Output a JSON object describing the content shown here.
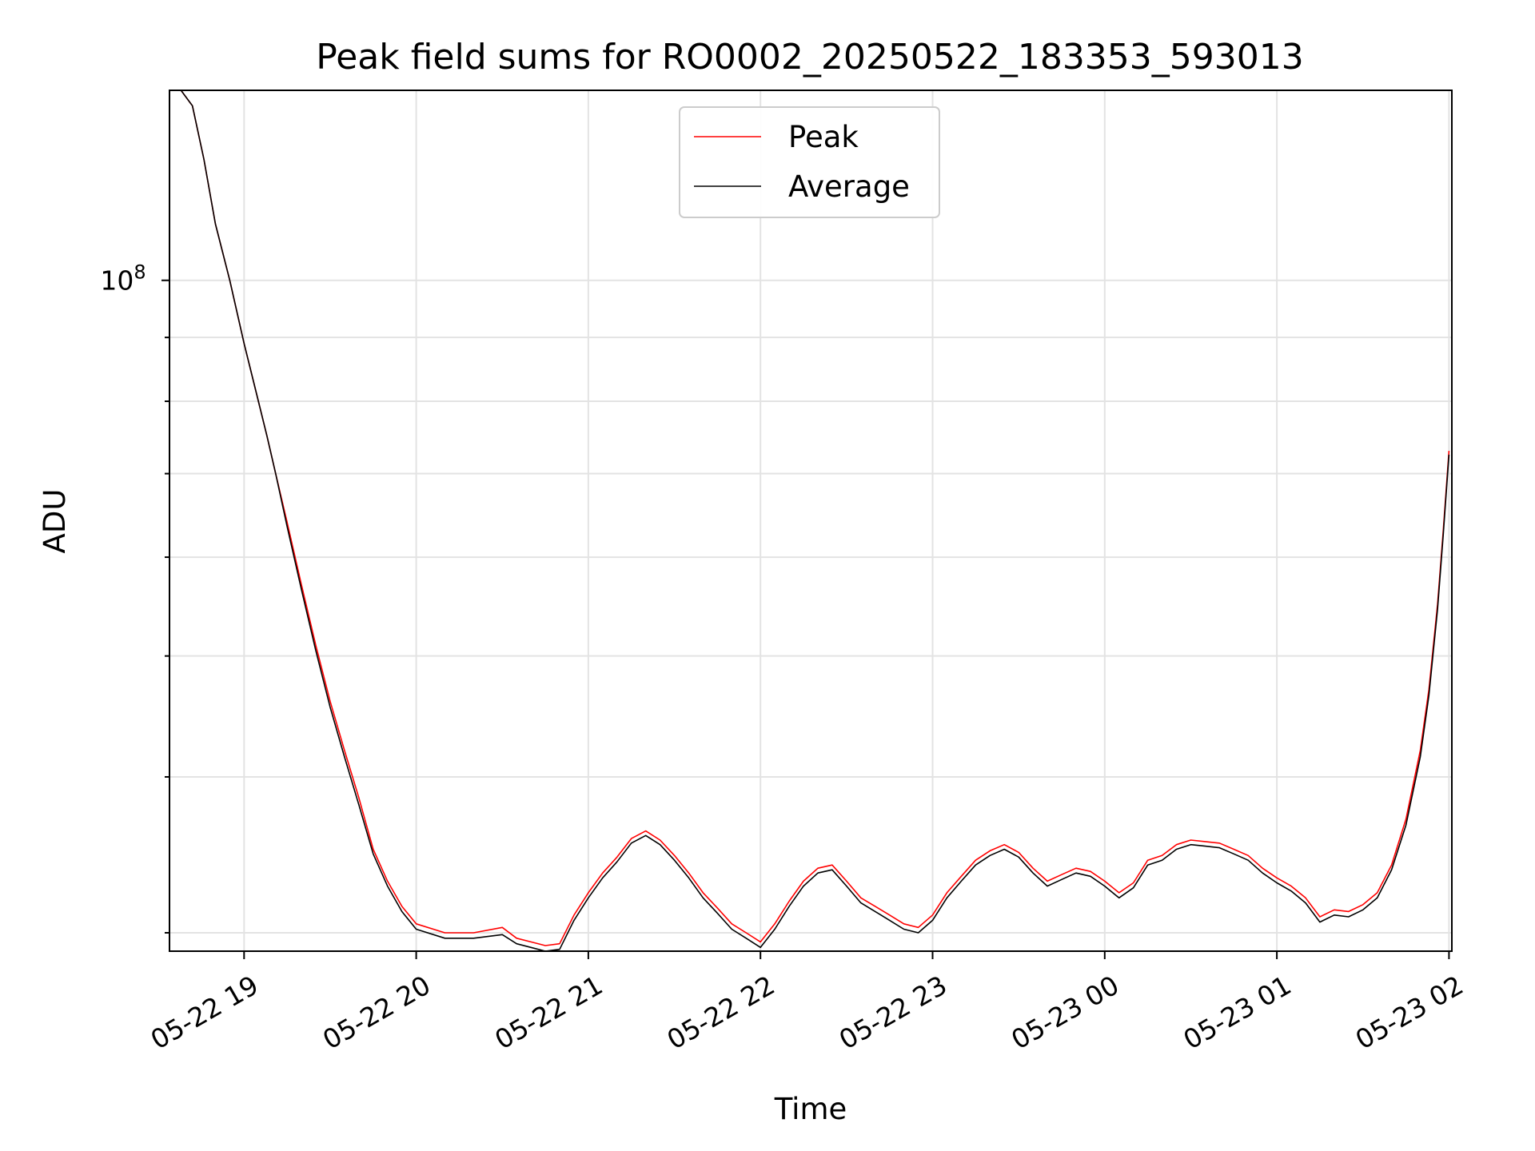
{
  "chart_data": {
    "type": "line",
    "title": "Peak field sums for RO0002_20250522_183353_593013",
    "xlabel": "Time",
    "ylabel": "ADU",
    "yscale": "log",
    "ylim": [
      29000000,
      142000000
    ],
    "xlim": [
      "2025-05-22 18:34",
      "2025-05-23 02:01"
    ],
    "grid": true,
    "legend_position": "top-center",
    "x_ticks": [
      {
        "t": "2025-05-22 19:00",
        "label": "05-22 19"
      },
      {
        "t": "2025-05-22 20:00",
        "label": "05-22 20"
      },
      {
        "t": "2025-05-22 21:00",
        "label": "05-22 21"
      },
      {
        "t": "2025-05-22 22:00",
        "label": "05-22 22"
      },
      {
        "t": "2025-05-22 23:00",
        "label": "05-22 23"
      },
      {
        "t": "2025-05-23 00:00",
        "label": "05-23 00"
      },
      {
        "t": "2025-05-23 01:00",
        "label": "05-23 01"
      },
      {
        "t": "2025-05-23 02:00",
        "label": "05-23 02"
      }
    ],
    "y_ticks": [
      {
        "value": 100000000,
        "base": "10",
        "exp": "8"
      }
    ],
    "y_minor_ticks": [
      30000000,
      40000000,
      50000000,
      60000000,
      70000000,
      80000000,
      90000000,
      200000000
    ],
    "series": [
      {
        "name": "Peak",
        "color": "#ff0000",
        "points": [
          [
            "2025-05-22 18:38",
            142000000
          ],
          [
            "2025-05-22 18:42",
            138000000
          ],
          [
            "2025-05-22 18:46",
            125000000
          ],
          [
            "2025-05-22 18:50",
            111000000
          ],
          [
            "2025-05-22 18:55",
            100000000
          ],
          [
            "2025-05-22 19:00",
            89000000
          ],
          [
            "2025-05-22 19:05",
            80000000
          ],
          [
            "2025-05-22 19:08",
            75000000
          ],
          [
            "2025-05-22 19:11",
            70000000
          ],
          [
            "2025-05-22 19:15",
            64000000
          ],
          [
            "2025-05-22 19:20",
            57000000
          ],
          [
            "2025-05-22 19:25",
            51000000
          ],
          [
            "2025-05-22 19:30",
            46000000
          ],
          [
            "2025-05-22 19:35",
            42000000
          ],
          [
            "2025-05-22 19:40",
            38500000
          ],
          [
            "2025-05-22 19:45",
            35000000
          ],
          [
            "2025-05-22 19:50",
            33000000
          ],
          [
            "2025-05-22 19:55",
            31500000
          ],
          [
            "2025-05-22 20:00",
            30500000
          ],
          [
            "2025-05-22 20:10",
            30000000
          ],
          [
            "2025-05-22 20:20",
            30000000
          ],
          [
            "2025-05-22 20:30",
            30300000
          ],
          [
            "2025-05-22 20:35",
            29700000
          ],
          [
            "2025-05-22 20:40",
            29500000
          ],
          [
            "2025-05-22 20:45",
            29300000
          ],
          [
            "2025-05-22 20:50",
            29400000
          ],
          [
            "2025-05-22 20:55",
            31000000
          ],
          [
            "2025-05-22 21:00",
            32300000
          ],
          [
            "2025-05-22 21:05",
            33500000
          ],
          [
            "2025-05-22 21:10",
            34500000
          ],
          [
            "2025-05-22 21:15",
            35700000
          ],
          [
            "2025-05-22 21:20",
            36200000
          ],
          [
            "2025-05-22 21:25",
            35600000
          ],
          [
            "2025-05-22 21:30",
            34600000
          ],
          [
            "2025-05-22 21:35",
            33500000
          ],
          [
            "2025-05-22 21:40",
            32300000
          ],
          [
            "2025-05-22 21:45",
            31400000
          ],
          [
            "2025-05-22 21:50",
            30500000
          ],
          [
            "2025-05-22 21:55",
            30000000
          ],
          [
            "2025-05-22 22:00",
            29500000
          ],
          [
            "2025-05-22 22:05",
            30500000
          ],
          [
            "2025-05-22 22:10",
            31800000
          ],
          [
            "2025-05-22 22:15",
            33000000
          ],
          [
            "2025-05-22 22:20",
            33800000
          ],
          [
            "2025-05-22 22:25",
            34000000
          ],
          [
            "2025-05-22 22:30",
            33000000
          ],
          [
            "2025-05-22 22:35",
            32000000
          ],
          [
            "2025-05-22 22:40",
            31500000
          ],
          [
            "2025-05-22 22:45",
            31000000
          ],
          [
            "2025-05-22 22:50",
            30500000
          ],
          [
            "2025-05-22 22:55",
            30300000
          ],
          [
            "2025-05-22 23:00",
            31000000
          ],
          [
            "2025-05-22 23:05",
            32300000
          ],
          [
            "2025-05-22 23:10",
            33300000
          ],
          [
            "2025-05-22 23:15",
            34300000
          ],
          [
            "2025-05-22 23:20",
            34900000
          ],
          [
            "2025-05-22 23:25",
            35300000
          ],
          [
            "2025-05-22 23:30",
            34800000
          ],
          [
            "2025-05-22 23:35",
            33800000
          ],
          [
            "2025-05-22 23:40",
            33000000
          ],
          [
            "2025-05-22 23:45",
            33400000
          ],
          [
            "2025-05-22 23:50",
            33800000
          ],
          [
            "2025-05-22 23:55",
            33600000
          ],
          [
            "2025-05-23 00:00",
            33000000
          ],
          [
            "2025-05-23 00:05",
            32300000
          ],
          [
            "2025-05-23 00:10",
            32900000
          ],
          [
            "2025-05-23 00:15",
            34300000
          ],
          [
            "2025-05-23 00:20",
            34600000
          ],
          [
            "2025-05-23 00:25",
            35300000
          ],
          [
            "2025-05-23 00:30",
            35600000
          ],
          [
            "2025-05-23 00:35",
            35500000
          ],
          [
            "2025-05-23 00:40",
            35400000
          ],
          [
            "2025-05-23 00:45",
            35000000
          ],
          [
            "2025-05-23 00:50",
            34600000
          ],
          [
            "2025-05-23 00:55",
            33800000
          ],
          [
            "2025-05-23 01:00",
            33200000
          ],
          [
            "2025-05-23 01:05",
            32700000
          ],
          [
            "2025-05-23 01:10",
            32000000
          ],
          [
            "2025-05-23 01:15",
            30900000
          ],
          [
            "2025-05-23 01:20",
            31300000
          ],
          [
            "2025-05-23 01:25",
            31200000
          ],
          [
            "2025-05-23 01:30",
            31600000
          ],
          [
            "2025-05-23 01:35",
            32300000
          ],
          [
            "2025-05-23 01:40",
            34000000
          ],
          [
            "2025-05-23 01:45",
            37000000
          ],
          [
            "2025-05-23 01:50",
            42000000
          ],
          [
            "2025-05-23 01:53",
            47000000
          ],
          [
            "2025-05-23 01:56",
            55000000
          ],
          [
            "2025-05-23 01:58",
            63000000
          ],
          [
            "2025-05-23 02:00",
            73000000
          ]
        ]
      },
      {
        "name": "Average",
        "color": "#000000",
        "points": [
          [
            "2025-05-22 18:38",
            142000000
          ],
          [
            "2025-05-22 18:42",
            138000000
          ],
          [
            "2025-05-22 18:46",
            125000000
          ],
          [
            "2025-05-22 18:50",
            111000000
          ],
          [
            "2025-05-22 18:55",
            100000000
          ],
          [
            "2025-05-22 19:00",
            89000000
          ],
          [
            "2025-05-22 19:05",
            80000000
          ],
          [
            "2025-05-22 19:08",
            75000000
          ],
          [
            "2025-05-22 19:11",
            70000000
          ],
          [
            "2025-05-22 19:15",
            63500000
          ],
          [
            "2025-05-22 19:20",
            56500000
          ],
          [
            "2025-05-22 19:25",
            50500000
          ],
          [
            "2025-05-22 19:30",
            45500000
          ],
          [
            "2025-05-22 19:35",
            41500000
          ],
          [
            "2025-05-22 19:40",
            38000000
          ],
          [
            "2025-05-22 19:45",
            34700000
          ],
          [
            "2025-05-22 19:50",
            32700000
          ],
          [
            "2025-05-22 19:55",
            31200000
          ],
          [
            "2025-05-22 20:00",
            30200000
          ],
          [
            "2025-05-22 20:10",
            29700000
          ],
          [
            "2025-05-22 20:20",
            29700000
          ],
          [
            "2025-05-22 20:30",
            29900000
          ],
          [
            "2025-05-22 20:35",
            29400000
          ],
          [
            "2025-05-22 20:40",
            29200000
          ],
          [
            "2025-05-22 20:45",
            29000000
          ],
          [
            "2025-05-22 20:50",
            29100000
          ],
          [
            "2025-05-22 20:55",
            30700000
          ],
          [
            "2025-05-22 21:00",
            32000000
          ],
          [
            "2025-05-22 21:05",
            33200000
          ],
          [
            "2025-05-22 21:10",
            34200000
          ],
          [
            "2025-05-22 21:15",
            35400000
          ],
          [
            "2025-05-22 21:20",
            35900000
          ],
          [
            "2025-05-22 21:25",
            35300000
          ],
          [
            "2025-05-22 21:30",
            34300000
          ],
          [
            "2025-05-22 21:35",
            33200000
          ],
          [
            "2025-05-22 21:40",
            32000000
          ],
          [
            "2025-05-22 21:45",
            31100000
          ],
          [
            "2025-05-22 21:50",
            30200000
          ],
          [
            "2025-05-22 21:55",
            29700000
          ],
          [
            "2025-05-22 22:00",
            29200000
          ],
          [
            "2025-05-22 22:05",
            30200000
          ],
          [
            "2025-05-22 22:10",
            31500000
          ],
          [
            "2025-05-22 22:15",
            32700000
          ],
          [
            "2025-05-22 22:20",
            33500000
          ],
          [
            "2025-05-22 22:25",
            33700000
          ],
          [
            "2025-05-22 22:30",
            32700000
          ],
          [
            "2025-05-22 22:35",
            31700000
          ],
          [
            "2025-05-22 22:40",
            31200000
          ],
          [
            "2025-05-22 22:45",
            30700000
          ],
          [
            "2025-05-22 22:50",
            30200000
          ],
          [
            "2025-05-22 22:55",
            30000000
          ],
          [
            "2025-05-22 23:00",
            30700000
          ],
          [
            "2025-05-22 23:05",
            32000000
          ],
          [
            "2025-05-22 23:10",
            33000000
          ],
          [
            "2025-05-22 23:15",
            34000000
          ],
          [
            "2025-05-22 23:20",
            34600000
          ],
          [
            "2025-05-22 23:25",
            35000000
          ],
          [
            "2025-05-22 23:30",
            34500000
          ],
          [
            "2025-05-22 23:35",
            33500000
          ],
          [
            "2025-05-22 23:40",
            32700000
          ],
          [
            "2025-05-22 23:45",
            33100000
          ],
          [
            "2025-05-22 23:50",
            33500000
          ],
          [
            "2025-05-22 23:55",
            33300000
          ],
          [
            "2025-05-23 00:00",
            32700000
          ],
          [
            "2025-05-23 00:05",
            32000000
          ],
          [
            "2025-05-23 00:10",
            32600000
          ],
          [
            "2025-05-23 00:15",
            34000000
          ],
          [
            "2025-05-23 00:20",
            34300000
          ],
          [
            "2025-05-23 00:25",
            35000000
          ],
          [
            "2025-05-23 00:30",
            35300000
          ],
          [
            "2025-05-23 00:35",
            35200000
          ],
          [
            "2025-05-23 00:40",
            35100000
          ],
          [
            "2025-05-23 00:45",
            34700000
          ],
          [
            "2025-05-23 00:50",
            34300000
          ],
          [
            "2025-05-23 00:55",
            33500000
          ],
          [
            "2025-05-23 01:00",
            32900000
          ],
          [
            "2025-05-23 01:05",
            32400000
          ],
          [
            "2025-05-23 01:10",
            31700000
          ],
          [
            "2025-05-23 01:15",
            30600000
          ],
          [
            "2025-05-23 01:20",
            31000000
          ],
          [
            "2025-05-23 01:25",
            30900000
          ],
          [
            "2025-05-23 01:30",
            31300000
          ],
          [
            "2025-05-23 01:35",
            32000000
          ],
          [
            "2025-05-23 01:40",
            33700000
          ],
          [
            "2025-05-23 01:45",
            36600000
          ],
          [
            "2025-05-23 01:50",
            41500000
          ],
          [
            "2025-05-23 01:53",
            46500000
          ],
          [
            "2025-05-23 01:56",
            54500000
          ],
          [
            "2025-05-23 01:58",
            62500000
          ],
          [
            "2025-05-23 02:00",
            72500000
          ]
        ]
      }
    ]
  }
}
